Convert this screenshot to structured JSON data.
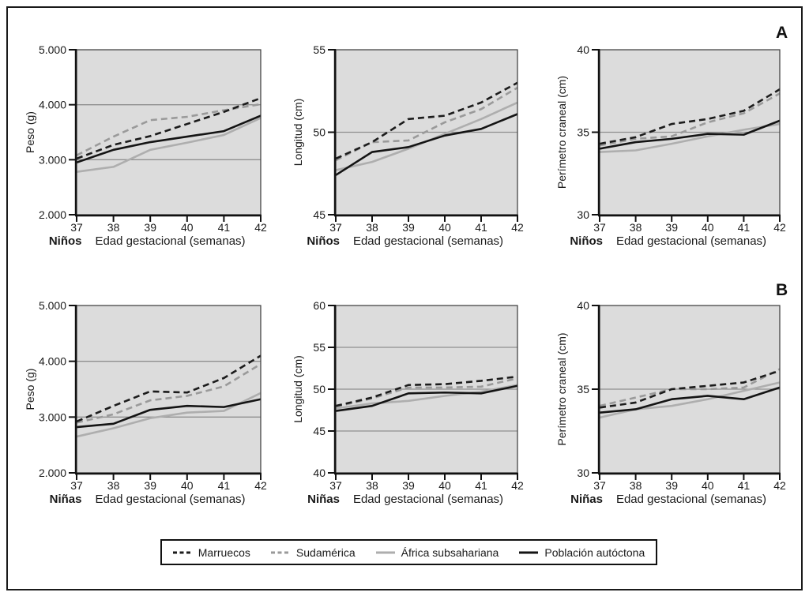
{
  "panels": [
    {
      "label": "A"
    },
    {
      "label": "B"
    }
  ],
  "legend": {
    "items": [
      {
        "label": "Marruecos",
        "color": "#1c1c1c",
        "dashed": true
      },
      {
        "label": "Sudamérica",
        "color": "#9a9a9a",
        "dashed": true
      },
      {
        "label": "África subsahariana",
        "color": "#aeaeae",
        "dashed": false
      },
      {
        "label": "Población autóctona",
        "color": "#141414",
        "dashed": false
      }
    ]
  },
  "colors": {
    "plot_background": "#dcdcdc",
    "gridline": "#8f8f8f",
    "axis": "#111111"
  },
  "chart_data": [
    {
      "type": "line",
      "name": "peso-ninos",
      "panel": "A",
      "ylabel": "Peso (g)",
      "group_label": "Niños",
      "xlabel": "Edad gestacional (semanas)",
      "x": [
        37,
        38,
        39,
        40,
        41,
        42
      ],
      "ylim": [
        2000,
        5000
      ],
      "yticks": [
        2000,
        3000,
        4000,
        5000
      ],
      "ytick_labels": [
        "2.000",
        "3.000",
        "4.000",
        "5.000"
      ],
      "gridlines": [
        3000,
        4000
      ],
      "series": [
        {
          "name": "Marruecos",
          "values": [
            3020,
            3270,
            3430,
            3650,
            3870,
            4120
          ]
        },
        {
          "name": "Sudamérica",
          "values": [
            3080,
            3420,
            3720,
            3780,
            3900,
            4010
          ]
        },
        {
          "name": "África subsahariana",
          "values": [
            2780,
            2870,
            3180,
            3310,
            3450,
            3760
          ]
        },
        {
          "name": "Población autóctona",
          "values": [
            2950,
            3180,
            3320,
            3420,
            3520,
            3800
          ]
        }
      ]
    },
    {
      "type": "line",
      "name": "longitud-ninos",
      "panel": "A",
      "ylabel": "Longitud (cm)",
      "group_label": "Niños",
      "xlabel": "Edad gestacional (semanas)",
      "x": [
        37,
        38,
        39,
        40,
        41,
        42
      ],
      "ylim": [
        45,
        55
      ],
      "yticks": [
        45,
        50,
        55
      ],
      "ytick_labels": [
        "45",
        "50",
        "55"
      ],
      "gridlines": [
        50
      ],
      "series": [
        {
          "name": "Marruecos",
          "values": [
            48.4,
            49.4,
            50.8,
            51.0,
            51.8,
            53.0
          ]
        },
        {
          "name": "Sudamérica",
          "values": [
            48.3,
            49.4,
            49.5,
            50.6,
            51.4,
            52.7
          ]
        },
        {
          "name": "África subsahariana",
          "values": [
            47.7,
            48.2,
            49.0,
            49.9,
            50.8,
            51.8
          ]
        },
        {
          "name": "Población autóctona",
          "values": [
            47.4,
            48.8,
            49.1,
            49.8,
            50.2,
            51.1
          ]
        }
      ]
    },
    {
      "type": "line",
      "name": "perimetro-craneal-ninos",
      "panel": "A",
      "ylabel": "Perímetro craneal (cm)",
      "group_label": "Niños",
      "xlabel": "Edad gestacional (semanas)",
      "x": [
        37,
        38,
        39,
        40,
        41,
        42
      ],
      "ylim": [
        30,
        40
      ],
      "yticks": [
        30,
        35,
        40
      ],
      "ytick_labels": [
        "30",
        "35",
        "40"
      ],
      "gridlines": [
        35
      ],
      "series": [
        {
          "name": "Marruecos",
          "values": [
            34.3,
            34.7,
            35.5,
            35.8,
            36.3,
            37.6
          ]
        },
        {
          "name": "Sudamérica",
          "values": [
            34.2,
            34.6,
            34.75,
            35.6,
            36.15,
            37.35
          ]
        },
        {
          "name": "África subsahariana",
          "values": [
            33.8,
            33.9,
            34.3,
            34.75,
            35.15,
            35.5
          ]
        },
        {
          "name": "Población autóctona",
          "values": [
            34.0,
            34.4,
            34.6,
            34.9,
            34.85,
            35.7
          ]
        }
      ]
    },
    {
      "type": "line",
      "name": "peso-ninas",
      "panel": "B",
      "ylabel": "Peso (g)",
      "group_label": "Niñas",
      "xlabel": "Edad gestacional (semanas)",
      "x": [
        37,
        38,
        39,
        40,
        41,
        42
      ],
      "ylim": [
        2000,
        5000
      ],
      "yticks": [
        2000,
        3000,
        4000,
        5000
      ],
      "ytick_labels": [
        "2.000",
        "3.000",
        "4.000",
        "5.000"
      ],
      "gridlines": [
        3000,
        4000
      ],
      "series": [
        {
          "name": "Marruecos",
          "values": [
            2920,
            3200,
            3460,
            3440,
            3700,
            4100
          ]
        },
        {
          "name": "Sudamérica",
          "values": [
            2900,
            3050,
            3300,
            3380,
            3550,
            3950
          ]
        },
        {
          "name": "África subsahariana",
          "values": [
            2650,
            2800,
            2980,
            3080,
            3110,
            3430
          ]
        },
        {
          "name": "Población autóctona",
          "values": [
            2820,
            2880,
            3130,
            3200,
            3180,
            3320
          ]
        }
      ]
    },
    {
      "type": "line",
      "name": "longitud-ninas",
      "panel": "B",
      "ylabel": "Longitud (cm)",
      "group_label": "Niñas",
      "xlabel": "Edad gestacional (semanas)",
      "x": [
        37,
        38,
        39,
        40,
        41,
        42
      ],
      "ylim": [
        40,
        60
      ],
      "yticks": [
        40,
        45,
        50,
        55,
        60
      ],
      "ytick_labels": [
        "40",
        "45",
        "50",
        "55",
        "60"
      ],
      "gridlines": [
        45,
        50,
        55
      ],
      "series": [
        {
          "name": "Marruecos",
          "values": [
            48.0,
            49.0,
            50.5,
            50.6,
            51.0,
            51.5
          ]
        },
        {
          "name": "Sudamérica",
          "values": [
            47.9,
            48.9,
            50.2,
            50.2,
            50.3,
            51.3
          ]
        },
        {
          "name": "África subsahariana",
          "values": [
            47.7,
            48.3,
            48.6,
            49.2,
            49.7,
            50.5
          ]
        },
        {
          "name": "Población autóctona",
          "values": [
            47.4,
            48.0,
            49.5,
            49.6,
            49.5,
            50.4
          ]
        }
      ]
    },
    {
      "type": "line",
      "name": "perimetro-craneal-ninas",
      "panel": "B",
      "ylabel": "Perímetro craneal (cm)",
      "group_label": "Niñas",
      "xlabel": "Edad gestacional (semanas)",
      "x": [
        37,
        38,
        39,
        40,
        41,
        42
      ],
      "ylim": [
        30,
        40
      ],
      "yticks": [
        30,
        35,
        40
      ],
      "ytick_labels": [
        "30",
        "35",
        "40"
      ],
      "gridlines": [
        35
      ],
      "series": [
        {
          "name": "Marruecos",
          "values": [
            33.9,
            34.2,
            35.0,
            35.2,
            35.4,
            36.1
          ]
        },
        {
          "name": "Sudamérica",
          "values": [
            34.0,
            34.5,
            35.0,
            35.0,
            35.1,
            36.2
          ]
        },
        {
          "name": "África subsahariana",
          "values": [
            33.3,
            33.8,
            34.0,
            34.4,
            34.9,
            35.4
          ]
        },
        {
          "name": "Población autóctona",
          "values": [
            33.6,
            33.8,
            34.4,
            34.6,
            34.4,
            35.1
          ]
        }
      ]
    }
  ]
}
